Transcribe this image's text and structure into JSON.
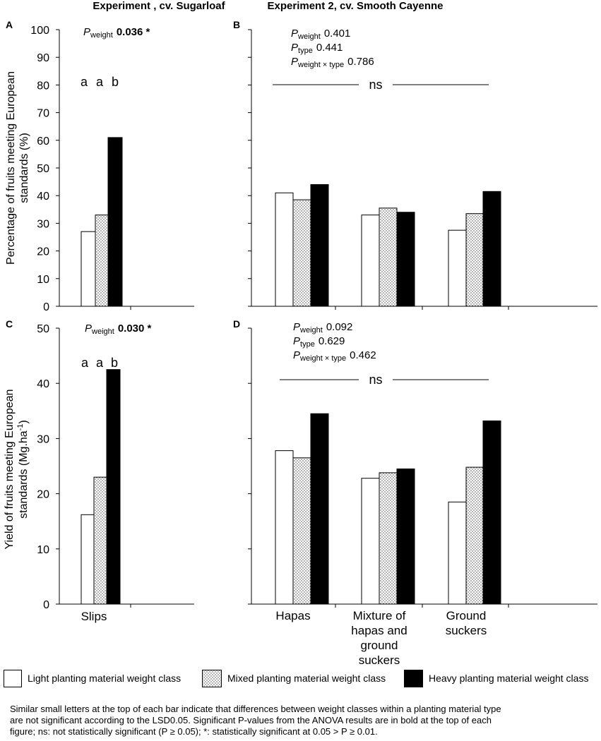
{
  "chart_data": [
    {
      "type": "bar",
      "panel_label": "A",
      "title": "Experiment , cv. Sugarloaf",
      "ylabel": "Percentage of fruits meeting European standards (%)",
      "ylim": [
        0,
        100
      ],
      "yticks": [
        0,
        10,
        20,
        30,
        40,
        50,
        60,
        70,
        80,
        90,
        100
      ],
      "categories": [
        ""
      ],
      "series": [
        {
          "name": "Light planting material weight class",
          "values": [
            27
          ]
        },
        {
          "name": "Mixed planting material weight class",
          "values": [
            33
          ]
        },
        {
          "name": "Heavy planting material weight class",
          "values": [
            61
          ]
        }
      ],
      "letters": [
        [
          "a",
          "a",
          "b"
        ]
      ],
      "stats": [
        {
          "symbol": "P",
          "sub": "weight",
          "value": "0.036 *",
          "bold": true
        }
      ]
    },
    {
      "type": "bar",
      "panel_label": "B",
      "title": "Experiment 2, cv. Smooth Cayenne",
      "ylim": [
        0,
        100
      ],
      "categories": [
        "",
        "",
        ""
      ],
      "series": [
        {
          "name": "Light planting material weight class",
          "values": [
            41,
            33,
            27.5
          ]
        },
        {
          "name": "Mixed planting material weight class",
          "values": [
            38.5,
            35.5,
            33.5
          ]
        },
        {
          "name": "Heavy planting material weight class",
          "values": [
            44,
            34,
            41.5
          ]
        }
      ],
      "ns_label": "ns",
      "stats": [
        {
          "symbol": "P",
          "sub": "weight",
          "value": "0.401",
          "bold": false
        },
        {
          "symbol": "P",
          "sub": "type",
          "value": "0.441",
          "bold": false
        },
        {
          "symbol": "P",
          "sub": "weight × type",
          "value": "0.786",
          "bold": false
        }
      ]
    },
    {
      "type": "bar",
      "panel_label": "C",
      "ylabel": "Yield of fruits meeting European standards (Mg.ha-1)",
      "ylabel_line1": "Yield of fruits meeting European",
      "ylabel_line2": "standards (Mg.ha",
      "ylabel_sup": "-1",
      "ylabel_end": ")",
      "ylim": [
        0,
        50
      ],
      "yticks": [
        0,
        10,
        20,
        30,
        40,
        50
      ],
      "categories": [
        "Slips"
      ],
      "series": [
        {
          "name": "Light planting material weight class",
          "values": [
            16.2
          ]
        },
        {
          "name": "Mixed planting material weight class",
          "values": [
            23
          ]
        },
        {
          "name": "Heavy planting material weight class",
          "values": [
            42.5
          ]
        }
      ],
      "letters": [
        [
          "a",
          "a",
          "b"
        ]
      ],
      "stats": [
        {
          "symbol": "P",
          "sub": "weight",
          "value": "0.030 *",
          "bold": true
        }
      ]
    },
    {
      "type": "bar",
      "panel_label": "D",
      "ylim": [
        0,
        50
      ],
      "categories": [
        "Hapas",
        "Mixture of hapas and ground suckers",
        "Ground suckers"
      ],
      "category_lines": [
        [
          "Hapas"
        ],
        [
          "Mixture of",
          "hapas and",
          "ground",
          "suckers"
        ],
        [
          "Ground",
          "suckers"
        ]
      ],
      "series": [
        {
          "name": "Light planting material weight class",
          "values": [
            27.8,
            22.8,
            18.5
          ]
        },
        {
          "name": "Mixed planting material weight class",
          "values": [
            26.5,
            23.8,
            24.8
          ]
        },
        {
          "name": "Heavy planting material weight class",
          "values": [
            34.5,
            24.5,
            33.2
          ]
        }
      ],
      "ns_label": "ns",
      "stats": [
        {
          "symbol": "P",
          "sub": "weight",
          "value": "0.092",
          "bold": false
        },
        {
          "symbol": "P",
          "sub": "type",
          "value": "0.629",
          "bold": false
        },
        {
          "symbol": "P",
          "sub": "weight × type",
          "value": "0.462",
          "bold": false
        }
      ]
    }
  ],
  "legend": [
    {
      "label": "Light planting material weight class",
      "fill": "#ffffff"
    },
    {
      "label": "Mixed planting material weight class",
      "fill": "dots"
    },
    {
      "label": "Heavy planting material weight class",
      "fill": "#000000"
    }
  ],
  "caption": {
    "line1": "Similar small letters at the top of each bar indicate that differences between weight classes within a planting material type",
    "line2": "are not significant according to the LSD0.05. Significant P-values from the ANOVA results are in bold at the top of each",
    "line3": "figure; ns: not statistically significant (P ≥ 0.05); *: statistically significant at 0.05 > P ≥ 0.01."
  }
}
